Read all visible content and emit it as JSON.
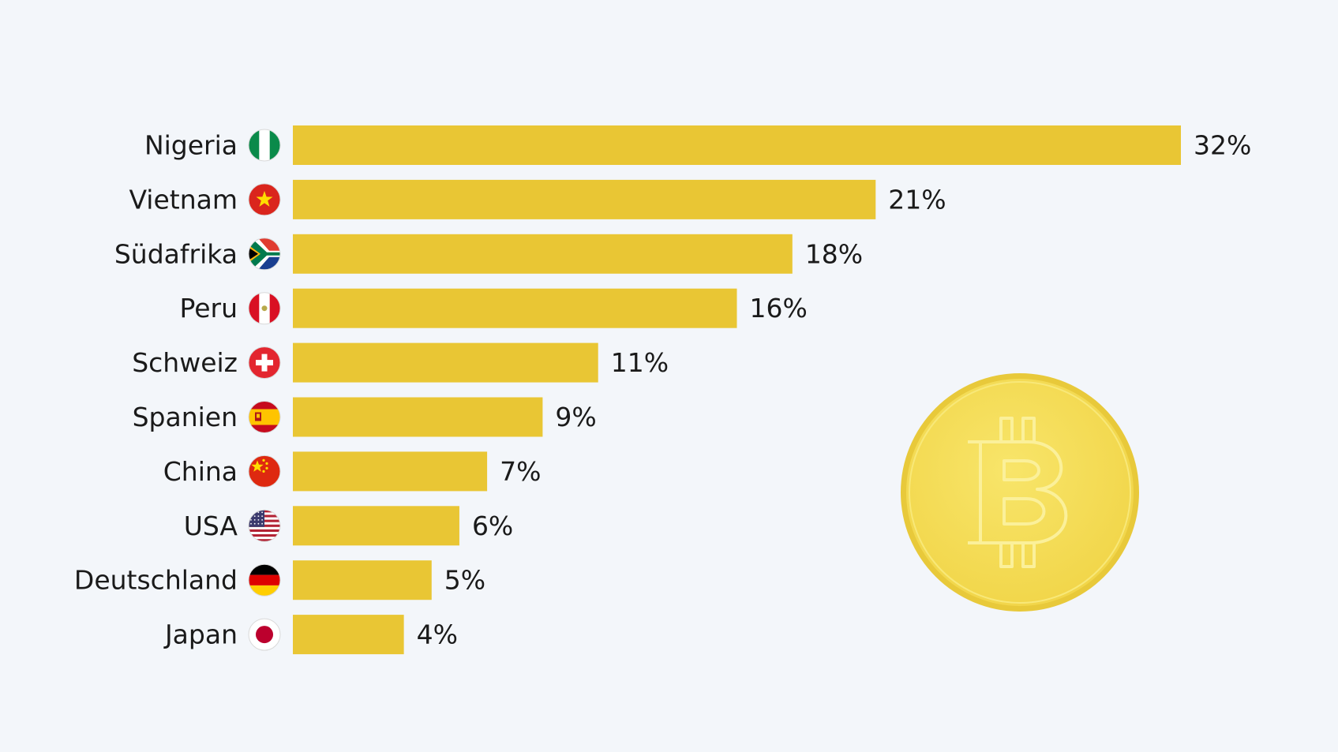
{
  "chart_data": {
    "type": "bar",
    "orientation": "horizontal",
    "categories": [
      "Nigeria",
      "Vietnam",
      "Südafrika",
      "Peru",
      "Schweiz",
      "Spanien",
      "China",
      "USA",
      "Deutschland",
      "Japan"
    ],
    "values": [
      32,
      21,
      18,
      16,
      11,
      9,
      7,
      6,
      5,
      4
    ],
    "value_labels": [
      "32%",
      "21%",
      "18%",
      "16%",
      "11%",
      "9%",
      "7%",
      "6%",
      "5%",
      "4%"
    ],
    "unit": "%",
    "flags": [
      "nigeria-flag-icon",
      "vietnam-flag-icon",
      "south-africa-flag-icon",
      "peru-flag-icon",
      "switzerland-flag-icon",
      "spain-flag-icon",
      "china-flag-icon",
      "usa-flag-icon",
      "germany-flag-icon",
      "japan-flag-icon"
    ],
    "title": "",
    "xlabel": "",
    "ylabel": "",
    "xlim": [
      0,
      32
    ],
    "grid": false,
    "legend": "none"
  },
  "colors": {
    "background": "#f3f6fa",
    "bar": "#e9c634",
    "text": "#1a1a1a",
    "coin_face": "#f4dc55",
    "coin_rim": "#e8c93a"
  },
  "decoration": {
    "icon": "bitcoin-coin-icon"
  }
}
